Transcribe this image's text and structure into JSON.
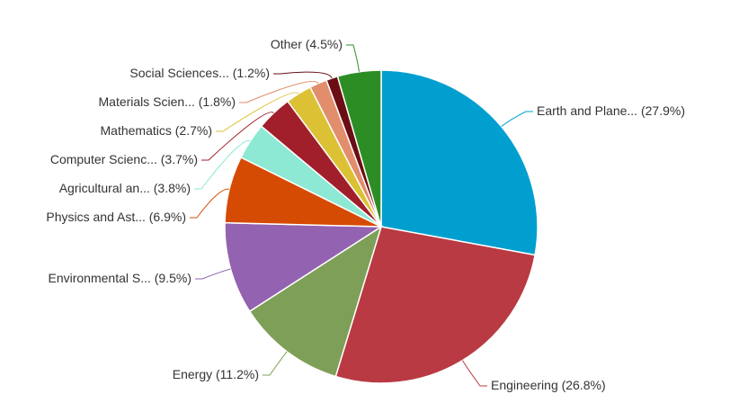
{
  "chart_data": {
    "type": "pie",
    "title": "",
    "slices": [
      {
        "label": "Earth and Plane...",
        "percent_label": "(27.9%)",
        "value": 27.9,
        "color": "#009fcf"
      },
      {
        "label": "Engineering",
        "percent_label": "(26.8%)",
        "value": 26.8,
        "color": "#b93a42"
      },
      {
        "label": "Energy",
        "percent_label": "(11.2%)",
        "value": 11.2,
        "color": "#7e9f57"
      },
      {
        "label": "Environmental S...",
        "percent_label": "(9.5%)",
        "value": 9.5,
        "color": "#9362b0"
      },
      {
        "label": "Physics and Ast...",
        "percent_label": "(6.9%)",
        "value": 6.9,
        "color": "#d64b03"
      },
      {
        "label": "Agricultural an...",
        "percent_label": "(3.8%)",
        "value": 3.8,
        "color": "#8de8d4"
      },
      {
        "label": "Computer Scienc...",
        "percent_label": "(3.7%)",
        "value": 3.7,
        "color": "#a01f2b"
      },
      {
        "label": "Mathematics",
        "percent_label": "(2.7%)",
        "value": 2.7,
        "color": "#dcc135"
      },
      {
        "label": "Materials Scien...",
        "percent_label": "(1.8%)",
        "value": 1.8,
        "color": "#e28d6c"
      },
      {
        "label": "Social Sciences...",
        "percent_label": "(1.2%)",
        "value": 1.2,
        "color": "#6b0e14"
      },
      {
        "label": "Other",
        "percent_label": "(4.5%)",
        "value": 4.5,
        "color": "#2d8d25"
      }
    ]
  }
}
